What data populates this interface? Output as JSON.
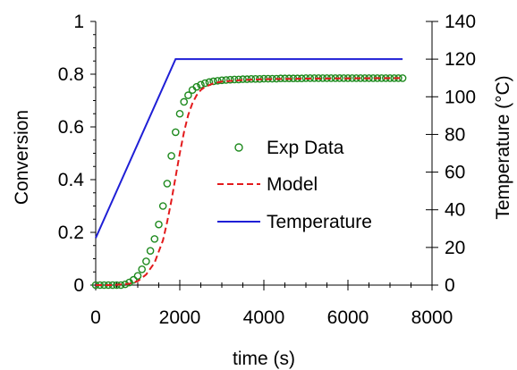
{
  "chart_data": {
    "type": "line",
    "title": "",
    "xlabel": "time (s)",
    "ylabel": "Conversion",
    "y2label": "Temperature (°C)",
    "xlim": [
      0,
      8000
    ],
    "ylim": [
      0,
      1
    ],
    "y2lim": [
      0,
      140
    ],
    "xticks": [
      0,
      2000,
      4000,
      6000,
      8000
    ],
    "yticks": [
      0,
      0.2,
      0.4,
      0.6,
      0.8,
      1
    ],
    "ytick_labels": [
      "0",
      "0.2",
      "0.4",
      "0.6",
      "0.8",
      "1"
    ],
    "y2ticks": [
      0,
      20,
      40,
      60,
      80,
      100,
      120,
      140
    ],
    "grid": false,
    "legend": "center-right",
    "series": [
      {
        "name": "Exp Data",
        "marker": "open-circle",
        "color": "#1f8a1f",
        "axis": "left",
        "x": [
          0,
          100,
          200,
          300,
          400,
          500,
          600,
          700,
          800,
          900,
          1000,
          1100,
          1200,
          1300,
          1400,
          1500,
          1600,
          1700,
          1800,
          1900,
          2000,
          2100,
          2200,
          2300,
          2400,
          2500,
          2600,
          2700,
          2800,
          2900,
          3000,
          3100,
          3200,
          3300,
          3400,
          3500,
          3600,
          3700,
          3800,
          3900,
          4000,
          4100,
          4200,
          4300,
          4400,
          4500,
          4600,
          4700,
          4800,
          4900,
          5000,
          5100,
          5200,
          5300,
          5400,
          5500,
          5600,
          5700,
          5800,
          5900,
          6000,
          6100,
          6200,
          6300,
          6400,
          6500,
          6600,
          6700,
          6800,
          6900,
          7000,
          7100,
          7200,
          7300
        ],
        "y": [
          0.0,
          0.0,
          0.0,
          0.0,
          0.0,
          0.0,
          0.0,
          0.003,
          0.01,
          0.02,
          0.035,
          0.06,
          0.09,
          0.13,
          0.175,
          0.23,
          0.3,
          0.385,
          0.49,
          0.58,
          0.65,
          0.695,
          0.72,
          0.74,
          0.752,
          0.76,
          0.766,
          0.77,
          0.773,
          0.775,
          0.777,
          0.778,
          0.779,
          0.78,
          0.78,
          0.781,
          0.781,
          0.782,
          0.782,
          0.782,
          0.783,
          0.783,
          0.783,
          0.783,
          0.784,
          0.784,
          0.784,
          0.784,
          0.784,
          0.784,
          0.785,
          0.785,
          0.785,
          0.785,
          0.785,
          0.785,
          0.785,
          0.785,
          0.785,
          0.785,
          0.785,
          0.785,
          0.785,
          0.785,
          0.785,
          0.785,
          0.785,
          0.785,
          0.785,
          0.785,
          0.785,
          0.785,
          0.785,
          0.785
        ]
      },
      {
        "name": "Model",
        "style": "dashed",
        "color": "#e31a1c",
        "axis": "left",
        "x": [
          0,
          400,
          800,
          1000,
          1200,
          1400,
          1600,
          1700,
          1800,
          1900,
          2000,
          2100,
          2200,
          2300,
          2400,
          2500,
          2600,
          2800,
          3000,
          3500,
          4000,
          5000,
          6000,
          7300
        ],
        "y": [
          0.0,
          0.0,
          0.005,
          0.015,
          0.04,
          0.085,
          0.17,
          0.24,
          0.32,
          0.41,
          0.5,
          0.58,
          0.645,
          0.69,
          0.72,
          0.74,
          0.752,
          0.765,
          0.772,
          0.778,
          0.781,
          0.783,
          0.784,
          0.785
        ]
      },
      {
        "name": "Temperature",
        "style": "solid",
        "color": "#1f1fd6",
        "axis": "right",
        "x": [
          0,
          1900,
          7300
        ],
        "y": [
          25,
          120,
          120
        ]
      }
    ]
  }
}
